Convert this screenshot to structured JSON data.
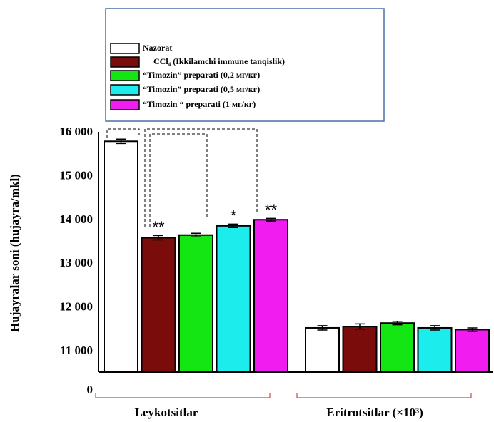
{
  "chart_data": {
    "type": "bar",
    "y_label": "Hujayralar soni (hujayra/mkl)",
    "categories": [
      "Leykotsitlar",
      "Eritrotsitlar (×10³)"
    ],
    "series": [
      {
        "name": "Nazorat",
        "color": "#ffffff",
        "values": [
          15800,
          11540
        ],
        "errors": [
          50,
          50
        ],
        "annotations": [
          null,
          null
        ]
      },
      {
        "name": "CCl₄ (Ikkilamchi immune tanqislik)",
        "color": "#7b0c0c",
        "values": [
          13600,
          11570
        ],
        "errors": [
          50,
          60
        ],
        "annotations": [
          "**",
          null
        ]
      },
      {
        "name": "“Timozin” preparati (0,2 мг/кг)",
        "color": "#14e614",
        "values": [
          13660,
          11650
        ],
        "errors": [
          40,
          40
        ],
        "annotations": [
          null,
          null
        ]
      },
      {
        "name": "“Timozin” preparati (0,5 мг/кг)",
        "color": "#1cecec",
        "values": [
          13870,
          11540
        ],
        "errors": [
          40,
          50
        ],
        "annotations": [
          "*",
          null
        ]
      },
      {
        "name": "“Timozin “ preparati (1 мг/кг)",
        "color": "#f01cf0",
        "values": [
          14010,
          11500
        ],
        "errors": [
          30,
          40
        ],
        "annotations": [
          "**",
          null
        ]
      }
    ],
    "ylim": [
      10530,
      16000
    ],
    "yticks": [
      {
        "value": 0,
        "label": "0"
      },
      {
        "value": 11000,
        "label": "11 000"
      },
      {
        "value": 12000,
        "label": "12 000"
      },
      {
        "value": 13000,
        "label": "13 000"
      },
      {
        "value": 14000,
        "label": "14 000"
      },
      {
        "value": 15000,
        "label": "15 000"
      },
      {
        "value": 16000,
        "label": "16 000"
      }
    ],
    "axis_break": true,
    "legend": "top"
  }
}
